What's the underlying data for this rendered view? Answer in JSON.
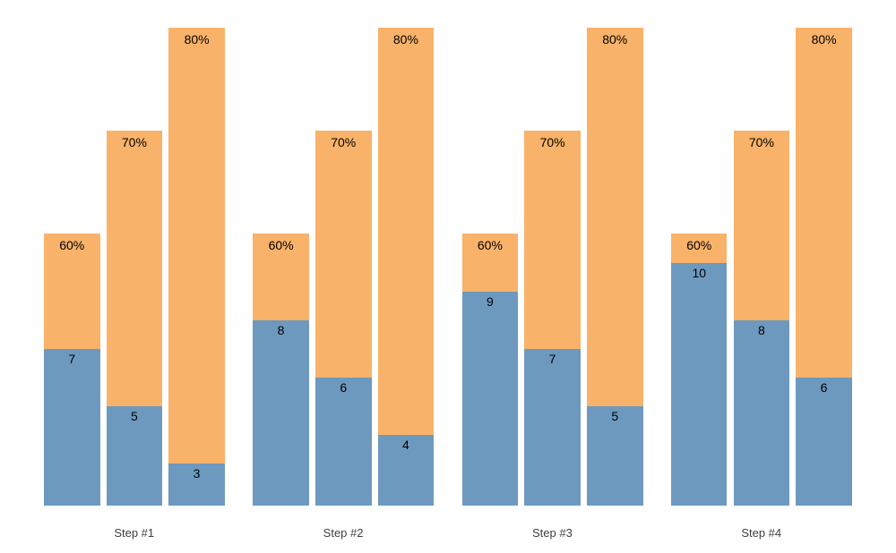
{
  "chart_data": {
    "type": "bar",
    "subtype": "grouped-stacked-columns",
    "title": "",
    "xlabel": "",
    "ylabel": "",
    "axes_visible": false,
    "grid": false,
    "legend": "none",
    "background": "#ffffff",
    "categories": [
      "Step #1",
      "Step #2",
      "Step #3",
      "Step #4"
    ],
    "bar_percent_levels": [
      60,
      70,
      80
    ],
    "groups": [
      {
        "category": "Step #1",
        "bars": [
          {
            "percent": 60,
            "percent_label": "60%",
            "value": 7,
            "value_label": "7"
          },
          {
            "percent": 70,
            "percent_label": "70%",
            "value": 5,
            "value_label": "5"
          },
          {
            "percent": 80,
            "percent_label": "80%",
            "value": 3,
            "value_label": "3"
          }
        ]
      },
      {
        "category": "Step #2",
        "bars": [
          {
            "percent": 60,
            "percent_label": "60%",
            "value": 8,
            "value_label": "8"
          },
          {
            "percent": 70,
            "percent_label": "70%",
            "value": 6,
            "value_label": "6"
          },
          {
            "percent": 80,
            "percent_label": "80%",
            "value": 4,
            "value_label": "4"
          }
        ]
      },
      {
        "category": "Step #3",
        "bars": [
          {
            "percent": 60,
            "percent_label": "60%",
            "value": 9,
            "value_label": "9"
          },
          {
            "percent": 70,
            "percent_label": "70%",
            "value": 7,
            "value_label": "7"
          },
          {
            "percent": 80,
            "percent_label": "80%",
            "value": 5,
            "value_label": "5"
          }
        ]
      },
      {
        "category": "Step #4",
        "bars": [
          {
            "percent": 60,
            "percent_label": "60%",
            "value": 10,
            "value_label": "10"
          },
          {
            "percent": 70,
            "percent_label": "70%",
            "value": 8,
            "value_label": "8"
          },
          {
            "percent": 80,
            "percent_label": "80%",
            "value": 6,
            "value_label": "6"
          }
        ]
      }
    ],
    "colors": {
      "bottom_segment": "#6d99bf",
      "top_segment": "#f9b269",
      "value_label": "#000000",
      "percent_label": "#000000",
      "category_label": "#3e3e3e"
    }
  }
}
